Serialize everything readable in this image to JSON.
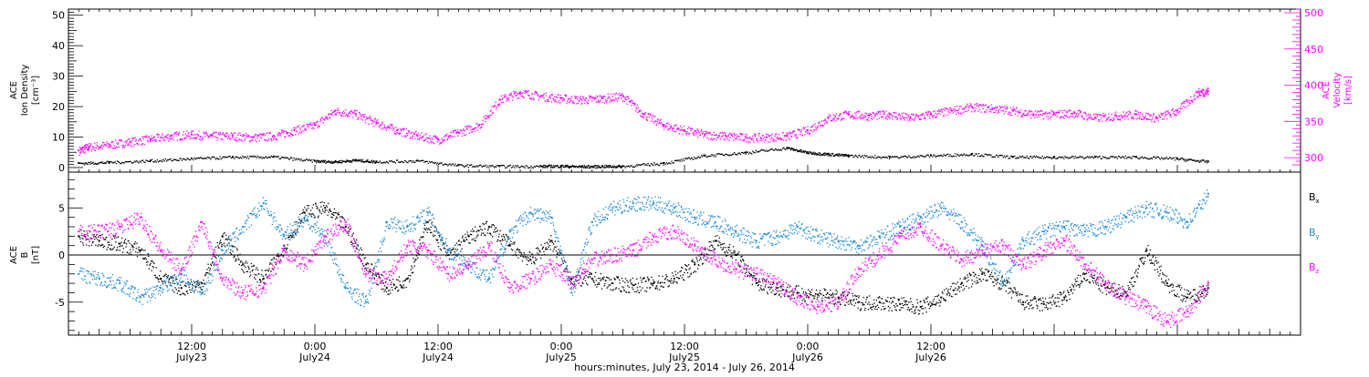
{
  "chart_data": [
    {
      "type": "scatter",
      "panel": "top",
      "left_ylabel": [
        "ACE",
        "Ion Density",
        "[cm⁻³]"
      ],
      "right_ylabel": [
        "ACE",
        "Velocity",
        "[km/s]"
      ],
      "ylim_left": [
        -1.5,
        52
      ],
      "ylim_right": [
        280,
        505
      ],
      "left_ticks": [
        "0",
        "10",
        "20",
        "30",
        "40",
        "50"
      ],
      "right_ticks": [
        "300",
        "350",
        "400",
        "450",
        "500"
      ],
      "grid": false,
      "colors": {
        "density": "#000000",
        "velocity": "#ff00ff"
      },
      "series": [
        {
          "axis": "left",
          "x": [
            1,
            4,
            8,
            12,
            16,
            20,
            24,
            26,
            28,
            30,
            34,
            38,
            42,
            46,
            48,
            50,
            52,
            54,
            58,
            62,
            66,
            70,
            72,
            74,
            76,
            80,
            84,
            88,
            92,
            96,
            100,
            104,
            108,
            111
          ],
          "y": [
            1.5,
            1.8,
            2.3,
            3.0,
            3.5,
            3.6,
            2.2,
            2.0,
            2.5,
            2.0,
            2.3,
            0.8,
            0.5,
            0.5,
            0.6,
            0.4,
            0.5,
            0.5,
            1.5,
            4.0,
            5.0,
            6.5,
            5.0,
            4.5,
            4.0,
            3.5,
            4.0,
            4.5,
            3.5,
            3.5,
            3.5,
            3.5,
            3.0,
            2.0
          ]
        },
        {
          "axis": "right",
          "x": [
            1,
            2,
            4,
            6,
            8,
            10,
            12,
            14,
            16,
            18,
            20,
            22,
            24,
            26,
            28,
            30,
            32,
            34,
            36,
            38,
            40,
            42,
            44,
            46,
            48,
            50,
            52,
            54,
            56,
            58,
            60,
            62,
            64,
            66,
            68,
            70,
            72,
            74,
            76,
            78,
            80,
            82,
            84,
            86,
            88,
            90,
            92,
            94,
            96,
            98,
            100,
            102,
            104,
            106,
            108,
            110,
            111
          ],
          "y": [
            310,
            315,
            318,
            322,
            326,
            330,
            332,
            330,
            330,
            328,
            330,
            338,
            345,
            365,
            360,
            348,
            338,
            330,
            325,
            335,
            345,
            380,
            390,
            385,
            382,
            380,
            382,
            385,
            360,
            345,
            338,
            332,
            330,
            328,
            328,
            330,
            338,
            355,
            360,
            358,
            360,
            355,
            360,
            365,
            370,
            368,
            365,
            360,
            360,
            362,
            355,
            358,
            360,
            355,
            365,
            390,
            392
          ]
        }
      ]
    },
    {
      "type": "scatter",
      "panel": "bottom",
      "ylabel": [
        "ACE",
        "B",
        "[nT]"
      ],
      "ylim": [
        -8.5,
        8.8
      ],
      "yticks": [
        "-5",
        "0",
        "5"
      ],
      "zero_line": true,
      "grid": false,
      "legend_position": "right",
      "legend": [
        "Bx",
        "By",
        "Bz"
      ],
      "colors": {
        "Bx": "#000000",
        "By": "#1e8ad6",
        "Bz": "#ff00ff"
      },
      "series": [
        {
          "name": "Bx",
          "x": [
            1,
            3,
            5,
            7,
            9,
            11,
            13,
            15,
            17,
            19,
            21,
            23,
            25,
            27,
            29,
            31,
            33,
            35,
            37,
            39,
            41,
            43,
            45,
            47,
            49,
            51,
            53,
            55,
            57,
            59,
            61,
            63,
            65,
            67,
            69,
            71,
            73,
            75,
            77,
            79,
            81,
            83,
            85,
            87,
            89,
            91,
            93,
            95,
            97,
            99,
            101,
            103,
            105,
            107,
            109,
            111
          ],
          "y": [
            2,
            1.5,
            1.2,
            0.5,
            -2.5,
            -3.5,
            -3.0,
            2.0,
            -1.0,
            -2.5,
            1.0,
            4.5,
            5.0,
            3.0,
            -1.0,
            -3.5,
            -2.5,
            3.5,
            0.0,
            2.0,
            3.0,
            1.0,
            -0.5,
            1.5,
            -2.5,
            -2.5,
            -3.0,
            -3.2,
            -3.0,
            -2.5,
            -1.0,
            1.5,
            0.0,
            -3.0,
            -3.5,
            -4.0,
            -4.2,
            -4.5,
            -5.0,
            -5.0,
            -5.2,
            -5.5,
            -4.5,
            -3.0,
            -2.0,
            -3.0,
            -5.0,
            -5.2,
            -4.5,
            -2.0,
            -3.5,
            -4.0,
            0.5,
            -3.0,
            -4.5,
            -3.5
          ]
        },
        {
          "name": "By",
          "x": [
            1,
            3,
            5,
            7,
            9,
            11,
            13,
            15,
            17,
            19,
            21,
            23,
            25,
            27,
            29,
            31,
            33,
            35,
            37,
            39,
            41,
            43,
            45,
            47,
            49,
            51,
            53,
            55,
            57,
            59,
            61,
            63,
            65,
            67,
            69,
            71,
            73,
            75,
            77,
            79,
            81,
            83,
            85,
            87,
            89,
            91,
            93,
            95,
            97,
            99,
            101,
            103,
            105,
            107,
            109,
            111
          ],
          "y": [
            -2.0,
            -2.5,
            -3.0,
            -4.5,
            -3.5,
            -2.0,
            -4.0,
            0.5,
            3.0,
            5.5,
            2.0,
            4.0,
            2.0,
            -3.5,
            -5.0,
            3.5,
            3.0,
            4.5,
            0.5,
            -1.0,
            -2.5,
            2.5,
            4.5,
            4.0,
            -4.0,
            3.5,
            5.0,
            5.5,
            5.5,
            5.0,
            4.0,
            3.5,
            2.5,
            1.5,
            2.0,
            3.0,
            2.0,
            1.5,
            1.0,
            2.0,
            3.0,
            4.0,
            5.0,
            3.5,
            1.0,
            -3.0,
            1.5,
            2.5,
            3.0,
            2.5,
            3.0,
            4.0,
            5.0,
            4.5,
            3.5,
            6.5
          ]
        },
        {
          "name": "Bz",
          "x": [
            1,
            3,
            5,
            7,
            9,
            11,
            13,
            15,
            17,
            19,
            21,
            23,
            25,
            27,
            29,
            31,
            33,
            35,
            37,
            39,
            41,
            43,
            45,
            47,
            49,
            51,
            53,
            55,
            57,
            59,
            61,
            63,
            65,
            67,
            69,
            71,
            73,
            75,
            77,
            79,
            81,
            83,
            85,
            87,
            89,
            91,
            93,
            95,
            97,
            99,
            101,
            103,
            105,
            107,
            109,
            111
          ],
          "y": [
            2.5,
            2.5,
            3.0,
            4.0,
            0.5,
            -1.5,
            3.5,
            -2.5,
            -4.0,
            -3.5,
            0.5,
            -1.0,
            2.0,
            3.5,
            -2.0,
            -2.5,
            1.0,
            0.5,
            -2.0,
            -1.0,
            1.0,
            -3.5,
            -2.5,
            -1.0,
            -3.0,
            -0.5,
            0.0,
            0.5,
            2.0,
            2.5,
            1.0,
            -0.5,
            -1.5,
            -2.0,
            -3.0,
            -4.5,
            -5.5,
            -5.0,
            -1.5,
            0.0,
            2.0,
            3.0,
            1.0,
            -0.5,
            0.5,
            1.0,
            -1.0,
            0.5,
            1.5,
            -1.0,
            -3.0,
            -4.5,
            -5.5,
            -7.0,
            -6.0,
            -3.0
          ]
        }
      ]
    }
  ],
  "x_axis": {
    "xlabel": "hours:minutes, July 23, 2014 - July 26, 2014",
    "xlim": [
      0,
      120
    ],
    "major_ticks": [
      {
        "x": 12,
        "time": "12:00",
        "date": "July23"
      },
      {
        "x": 24,
        "time": "0:00",
        "date": "July24"
      },
      {
        "x": 36,
        "time": "12:00",
        "date": "July24"
      },
      {
        "x": 48,
        "time": "0:00",
        "date": "July25"
      },
      {
        "x": 60,
        "time": "12:00",
        "date": "July25"
      },
      {
        "x": 72,
        "time": "0:00",
        "date": "July26"
      },
      {
        "x": 84,
        "time": "12:00",
        "date": "July26"
      }
    ]
  },
  "legend_labels": {
    "Bx": {
      "base": "B",
      "sub": "x"
    },
    "By": {
      "base": "B",
      "sub": "y"
    },
    "Bz": {
      "base": "B",
      "sub": "z"
    }
  }
}
